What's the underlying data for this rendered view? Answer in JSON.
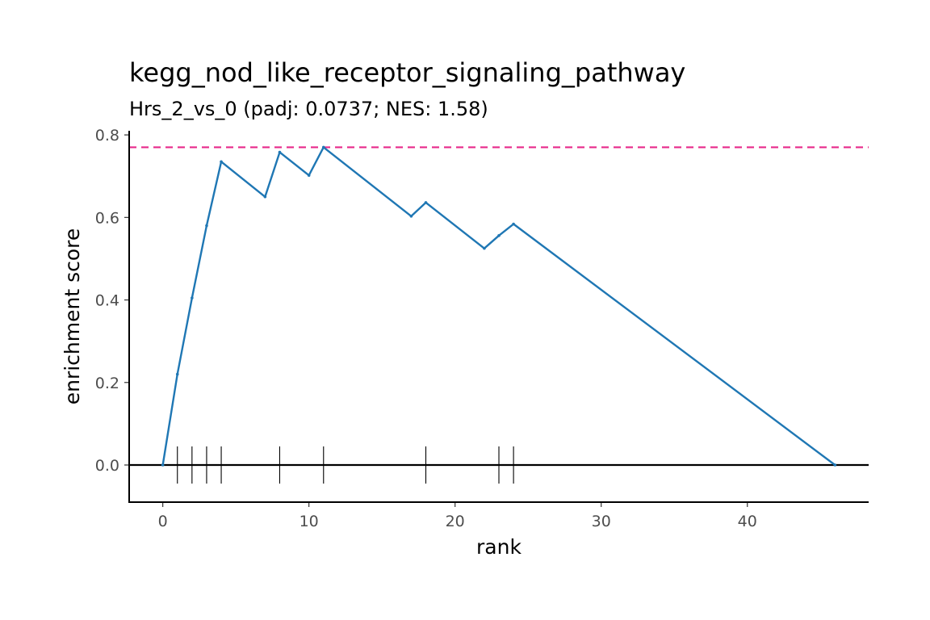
{
  "chart_data": {
    "type": "line",
    "title": "kegg_nod_like_receptor_signaling_pathway",
    "subtitle": "Hrs_2_vs_0 (padj: 0.0737; NES: 1.58)",
    "xlabel": "rank",
    "ylabel": "enrichment score",
    "xlim": [
      -2.3,
      48.3
    ],
    "ylim": [
      -0.09,
      0.81
    ],
    "x_ticks": [
      0,
      10,
      20,
      30,
      40
    ],
    "x_tick_labels": [
      "0",
      "10",
      "20",
      "30",
      "40"
    ],
    "y_ticks": [
      0,
      0.2,
      0.4,
      0.6,
      0.8
    ],
    "y_tick_labels": [
      "0.0",
      "0.2",
      "0.4",
      "0.6",
      "0.8"
    ],
    "grid": false,
    "series": [
      {
        "x": [
          0,
          1,
          2,
          3,
          4,
          7,
          8,
          10,
          11,
          17,
          18,
          22,
          23,
          24,
          46
        ],
        "y": [
          0,
          0.22,
          0.405,
          0.58,
          0.735,
          0.65,
          0.758,
          0.702,
          0.77,
          0.603,
          0.636,
          0.525,
          0.556,
          0.584,
          0
        ]
      }
    ],
    "max_es_line": 0.77,
    "hit_ranks": [
      1,
      2,
      3,
      4,
      8,
      11,
      18,
      23,
      24
    ],
    "colors": {
      "line": "#1f77b4",
      "max_es": "#e7298a",
      "axis": "#000000",
      "ticks_text": "#4d4d4d",
      "hits": "#000000"
    }
  }
}
